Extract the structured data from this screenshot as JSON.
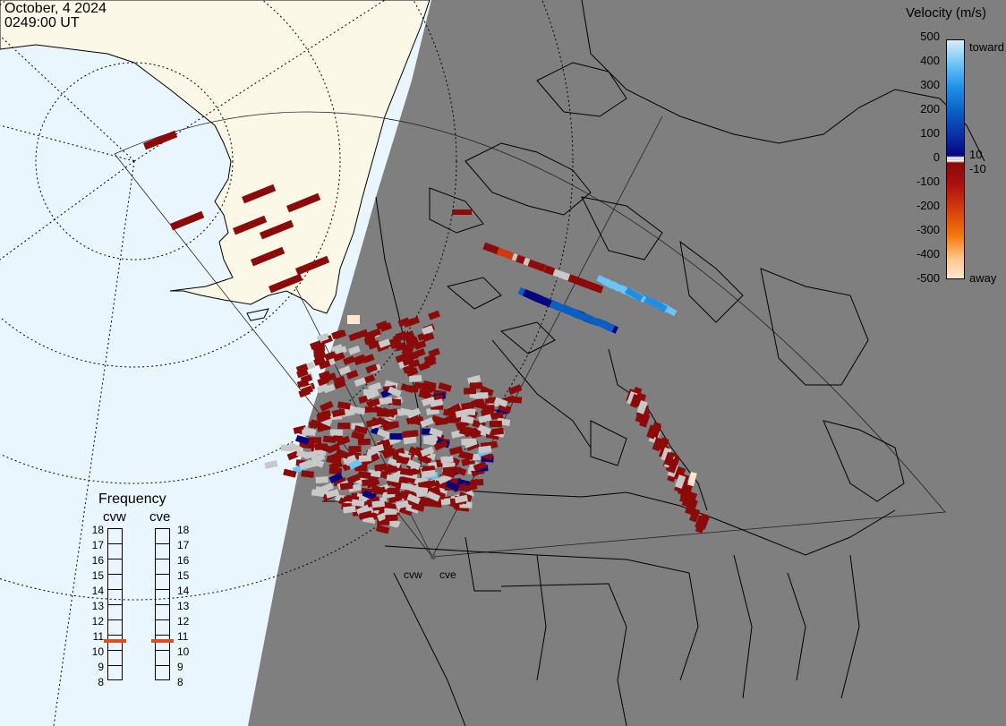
{
  "header": {
    "date": "October, 4 2024",
    "time": "0249:00 UT"
  },
  "colorbar": {
    "title": "Velocity (m/s)",
    "ticks": [
      "500",
      "400",
      "300",
      "200",
      "100",
      "0",
      "-100",
      "-200",
      "-300",
      "-400",
      "-500"
    ],
    "inner_pos": "10",
    "inner_neg": "-10",
    "toward_label": "toward",
    "away_label": "away",
    "colors": [
      "#d8eefc",
      "#6cc4f5",
      "#1f8fe6",
      "#0b5fc4",
      "#0a2fa6",
      "#06057e",
      "#c8c8c8",
      "#8b0a0a",
      "#d1380c",
      "#f07a0a",
      "#ffe6d0"
    ]
  },
  "frequency": {
    "title": "Frequency",
    "radars": [
      {
        "name": "cvw",
        "value_mhz": 11
      },
      {
        "name": "cve",
        "value_mhz": 11
      }
    ],
    "scale": [
      "18",
      "17",
      "16",
      "15",
      "14",
      "13",
      "12",
      "11",
      "10",
      "9",
      "8"
    ]
  },
  "radar_sites": [
    "cvw",
    "cve"
  ],
  "map_colors": {
    "ocean": "#eaf6fd",
    "land": "#fbf8e8",
    "night": "#7f7f7f",
    "outline": "#000000"
  }
}
